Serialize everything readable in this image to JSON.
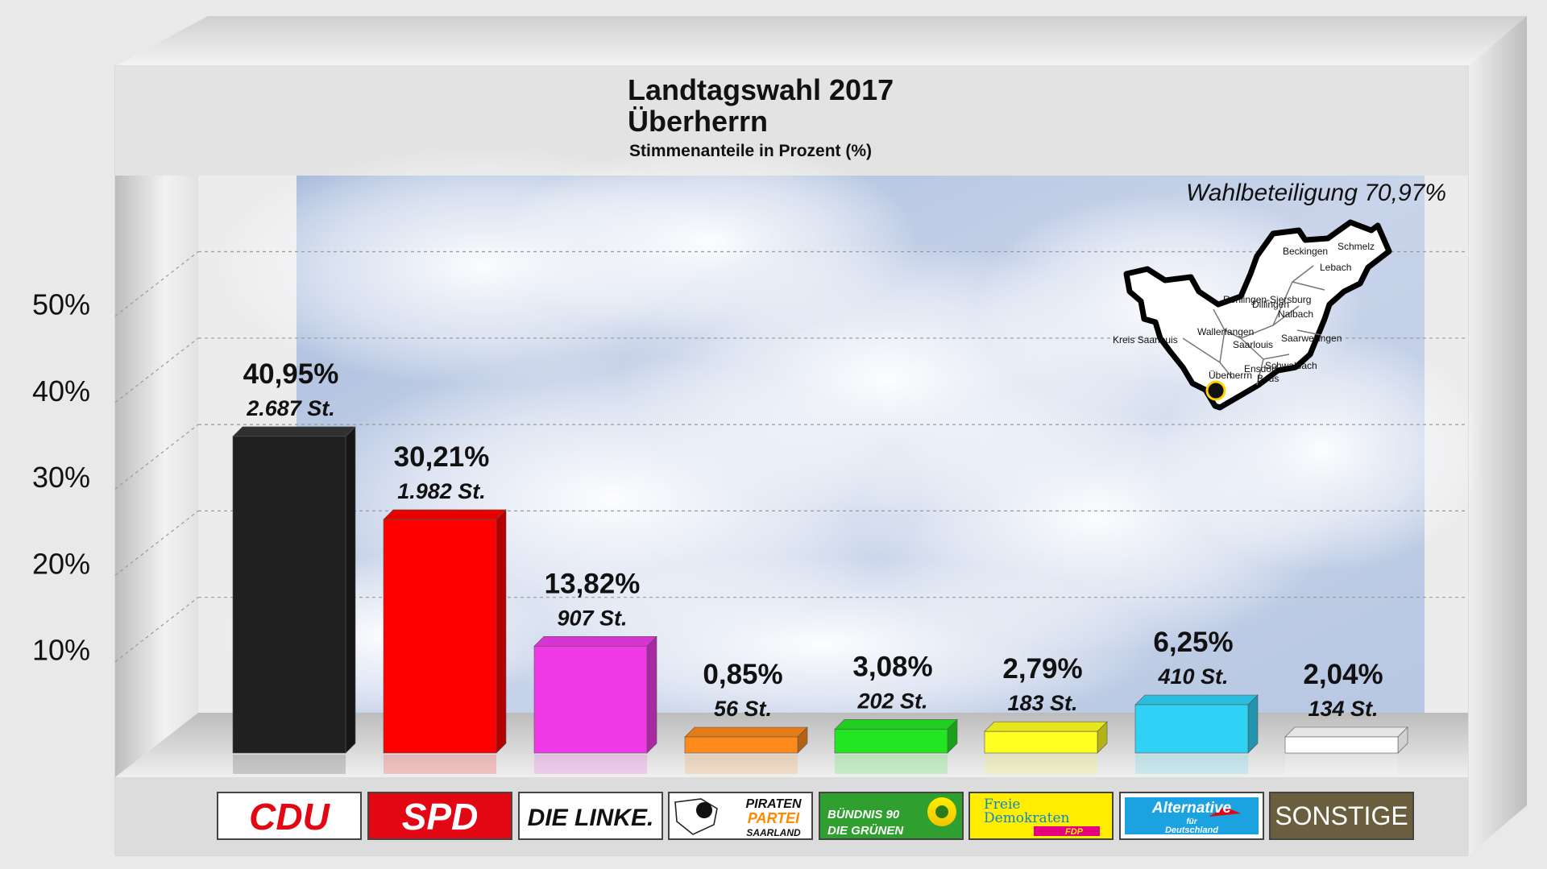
{
  "chart_data": {
    "type": "bar",
    "title": "Landtagswahl 2017",
    "subtitle": "Überherrn",
    "caption": "Stimmenanteile in Prozent (%)",
    "turnout": "Wahlbeteiligung 70,97%",
    "ylim": [
      0,
      50
    ],
    "yticks": [
      {
        "value": 10,
        "label": "10%"
      },
      {
        "value": 20,
        "label": "20%"
      },
      {
        "value": 30,
        "label": "30%"
      },
      {
        "value": 40,
        "label": "40%"
      },
      {
        "value": 50,
        "label": "50%"
      }
    ],
    "grid": true,
    "categories": [
      "CDU",
      "SPD",
      "DIE LINKE.",
      "PIRATEN PARTEI SAARLAND",
      "BÜNDNIS 90 DIE GRÜNEN",
      "Freie Demokraten FDP",
      "Alternative für Deutschland",
      "SONSTIGE"
    ],
    "values": [
      40.95,
      30.21,
      13.82,
      0.85,
      3.08,
      2.79,
      6.25,
      2.04
    ],
    "percent_labels": [
      "40,95%",
      "30,21%",
      "13,82%",
      "0,85%",
      "3,08%",
      "2,79%",
      "6,25%",
      "2,04%"
    ],
    "vote_labels": [
      "2.687 St.",
      "1.982 St.",
      "907 St.",
      "56 St.",
      "202 St.",
      "183 St.",
      "410 St.",
      "134 St."
    ],
    "colors": [
      "#202020",
      "#ff0000",
      "#f03ae8",
      "#ff8a1c",
      "#22e622",
      "#ffff22",
      "#2fd2f5",
      "#ffffff"
    ]
  },
  "map": {
    "label": "Kreis Saarlouis",
    "towns": [
      "Rehlingen-Siersburg",
      "Dillingen",
      "Saarlouis",
      "Wallerfangen",
      "Beckingen",
      "Lebach",
      "Schmelz",
      "Nalbach",
      "Saarwellingen",
      "Schwalbach",
      "Ensdorf",
      "Bous",
      "Überherrn"
    ]
  },
  "logos": [
    {
      "lines": [
        "CDU"
      ],
      "bg": "#ffffff",
      "fg": "#e30613",
      "border": "#444444"
    },
    {
      "lines": [
        "SPD"
      ],
      "bg": "#e30613",
      "fg": "#ffffff",
      "border": "#444444"
    },
    {
      "lines": [
        "DIE LINKE."
      ],
      "bg": "#ffffff",
      "fg": "#111111",
      "border": "#444444"
    },
    {
      "lines": [
        "PIRATEN",
        "PARTEI",
        "SAARLAND"
      ],
      "bg": "#ffffff",
      "fg": "#111111",
      "accent": "#ff8a00",
      "border": "#444444"
    },
    {
      "lines": [
        "BÜNDNIS 90",
        "DIE GRÜNEN"
      ],
      "bg": "#2fa02f",
      "fg": "#ffffff",
      "accent": "#ffe600",
      "border": "#444444"
    },
    {
      "lines": [
        "Freie",
        "Demokraten",
        "FDP"
      ],
      "bg": "#ffed00",
      "fg": "#0e87c8",
      "accent": "#e5007d",
      "border": "#444444"
    },
    {
      "lines": [
        "Alternative",
        "für",
        "Deutschland"
      ],
      "bg": "#ffffff",
      "fg": "#ffffff",
      "accent": "#1aa3e0",
      "accent2": "#e30613",
      "border": "#444444"
    },
    {
      "lines": [
        "SONSTIGE"
      ],
      "bg": "#6b5e3e",
      "fg": "#ffffff",
      "border": "#444444"
    }
  ]
}
